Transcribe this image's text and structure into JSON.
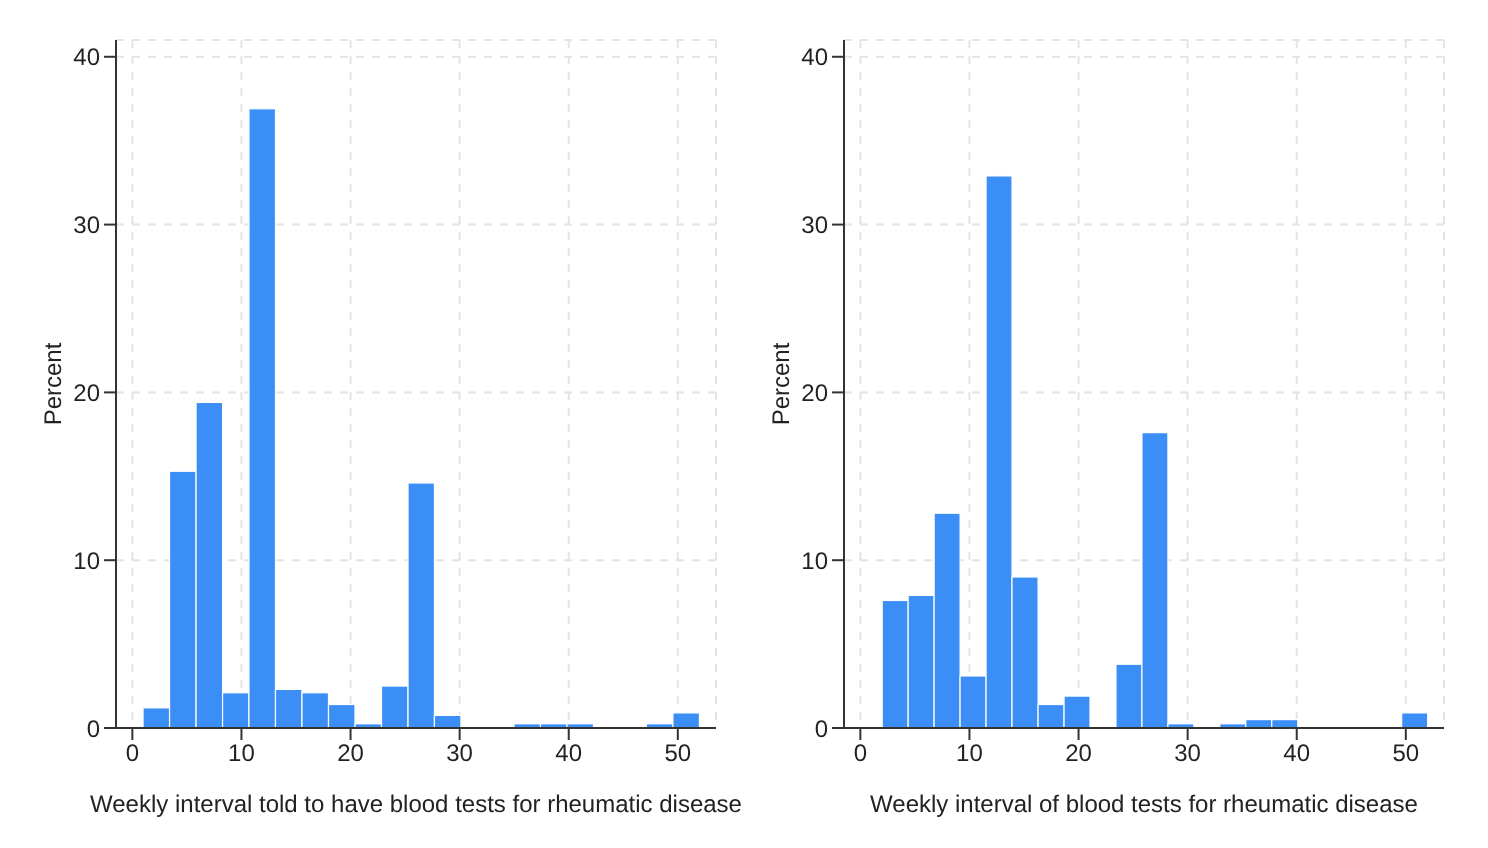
{
  "chart_data": [
    {
      "type": "histogram",
      "xlabel": "Weekly interval told to have blood tests for rheumatic disease",
      "ylabel": "Percent",
      "color": "#3a8ef6",
      "bins": [
        1,
        3.43,
        5.86,
        8.29,
        10.71,
        13.14,
        15.57,
        18,
        20.43,
        22.86,
        25.29,
        27.71,
        30.14,
        32.57,
        35,
        37.43,
        39.86,
        42.29,
        44.71,
        47.14,
        49.57,
        52
      ],
      "values": [
        1.2,
        15.3,
        19.4,
        2.1,
        36.9,
        2.3,
        2.1,
        1.4,
        0.25,
        2.5,
        14.6,
        0.75,
        0,
        0,
        0.25,
        0.25,
        0.25,
        0,
        0,
        0.25,
        0.9
      ],
      "xlim": [
        -1.5,
        53.5
      ],
      "xticks": [
        0,
        10,
        20,
        30,
        40,
        50
      ],
      "ylim": [
        0,
        41
      ],
      "yticks": [
        0,
        10,
        20,
        30,
        40
      ],
      "grid": true
    },
    {
      "type": "histogram",
      "xlabel": "Weekly interval of blood tests for rheumatic disease",
      "ylabel": "Percent",
      "color": "#3a8ef6",
      "bins": [
        2,
        4.38,
        6.76,
        9.14,
        11.52,
        13.9,
        16.29,
        18.67,
        21.05,
        23.43,
        25.81,
        28.19,
        30.57,
        32.95,
        35.33,
        37.71,
        40.1,
        42.48,
        44.86,
        47.24,
        49.62,
        52
      ],
      "values": [
        7.6,
        7.9,
        12.8,
        3.1,
        32.9,
        9,
        1.4,
        1.9,
        0,
        3.8,
        17.6,
        0.25,
        0,
        0.25,
        0.5,
        0.5,
        0,
        0,
        0,
        0,
        0.9
      ],
      "xlim": [
        -1.5,
        53.5
      ],
      "xticks": [
        0,
        10,
        20,
        30,
        40,
        50
      ],
      "ylim": [
        0,
        41
      ],
      "yticks": [
        0,
        10,
        20,
        30,
        40
      ],
      "grid": true
    }
  ]
}
